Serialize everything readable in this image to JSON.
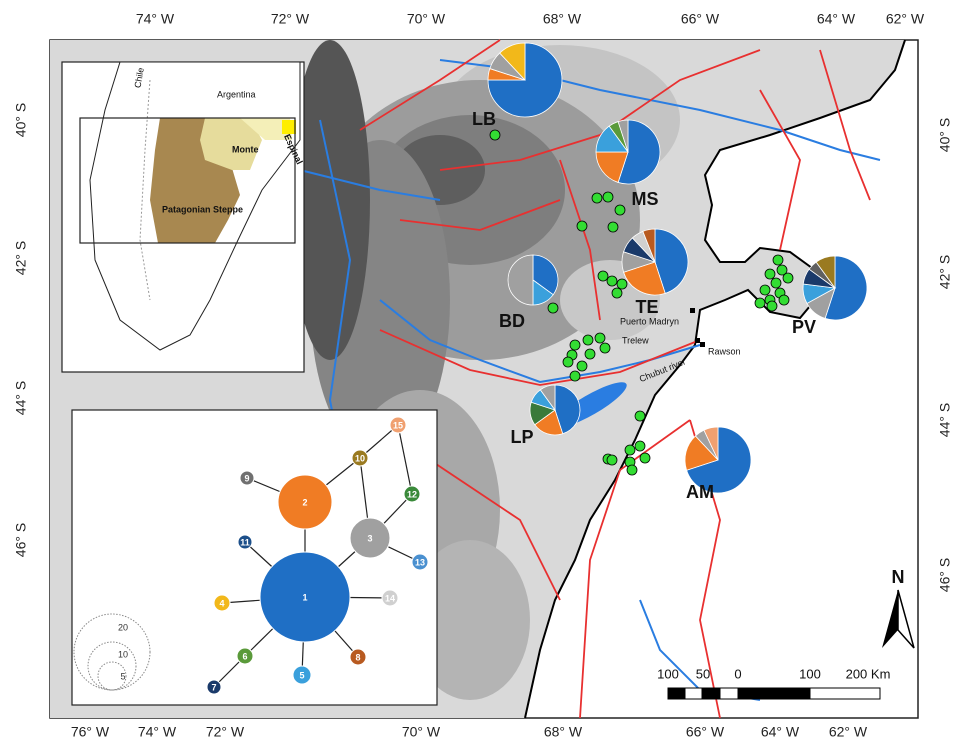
{
  "axes": {
    "top": [
      "74° W",
      "72° W",
      "70° W",
      "68° W",
      "66° W",
      "64° W",
      "62° W"
    ],
    "bottom": [
      "76° W",
      "74° W",
      "72° W",
      "70° W",
      "68° W",
      "66° W",
      "64° W",
      "62° W"
    ],
    "left": [
      "40° S",
      "42° S",
      "44° S",
      "46° S"
    ],
    "right": [
      "40° S",
      "42° S",
      "44° S",
      "46° S"
    ]
  },
  "sites": [
    {
      "label": "LB",
      "values": [
        75,
        5,
        8,
        12
      ],
      "colors": [
        "#1f6fc5",
        "#f07c24",
        "#a0a0a0",
        "#f2b81a"
      ]
    },
    {
      "label": "MS",
      "values": [
        55,
        20,
        15,
        5,
        5
      ],
      "colors": [
        "#1f6fc5",
        "#f07c24",
        "#3aa0dc",
        "#5a9a3a",
        "#a0a0a0"
      ]
    },
    {
      "label": "TE",
      "values": [
        45,
        25,
        10,
        8,
        6,
        6
      ],
      "colors": [
        "#1f6fc5",
        "#f07c24",
        "#a0a0a0",
        "#1a3a6a",
        "#d0d0d0",
        "#b85a20"
      ]
    },
    {
      "label": "BD",
      "values": [
        35,
        15,
        50
      ],
      "colors": [
        "#1f6fc5",
        "#3aa0dc",
        "#a0a0a0"
      ]
    },
    {
      "label": "PV",
      "values": [
        55,
        12,
        10,
        8,
        5,
        10
      ],
      "colors": [
        "#1f6fc5",
        "#a0a0a0",
        "#3aa0dc",
        "#1a3a6a",
        "#606060",
        "#9a7a20"
      ]
    },
    {
      "label": "LP",
      "values": [
        45,
        20,
        15,
        10,
        10
      ],
      "colors": [
        "#1f6fc5",
        "#f07c24",
        "#3a7a3a",
        "#3aa0dc",
        "#a0a0a0"
      ]
    },
    {
      "label": "AM",
      "values": [
        70,
        18,
        5,
        7
      ],
      "colors": [
        "#1f6fc5",
        "#f07c24",
        "#a0a0a0",
        "#f0a070"
      ]
    }
  ],
  "places": [
    "Puerto Madryn",
    "Trelew",
    "Rawson",
    "Chubut river"
  ],
  "inset_map": {
    "labels": [
      "Chile",
      "Argentina",
      "Espinal",
      "Monte",
      "Patagonian Steppe"
    ]
  },
  "network": {
    "nodes": [
      {
        "label": "1",
        "color": "#1f6fc5"
      },
      {
        "label": "2",
        "color": "#f07c24"
      },
      {
        "label": "3",
        "color": "#a0a0a0"
      },
      {
        "label": "4",
        "color": "#f2b81a"
      },
      {
        "label": "5",
        "color": "#3aa0dc"
      },
      {
        "label": "6",
        "color": "#5a9a3a"
      },
      {
        "label": "7",
        "color": "#1a3a6a"
      },
      {
        "label": "8",
        "color": "#b85a20"
      },
      {
        "label": "9",
        "color": "#707070"
      },
      {
        "label": "10",
        "color": "#9a7a20"
      },
      {
        "label": "11",
        "color": "#1c4f8a"
      },
      {
        "label": "12",
        "color": "#3a8a3a"
      },
      {
        "label": "13",
        "color": "#4a90d0"
      },
      {
        "label": "14",
        "color": "#d0d0d0"
      },
      {
        "label": "15",
        "color": "#f0a070"
      }
    ],
    "legend": [
      "20",
      "10",
      "5"
    ]
  },
  "scale_bar": {
    "labels": [
      "100",
      "50",
      "0",
      "100",
      "200 Km"
    ]
  },
  "north": "N"
}
